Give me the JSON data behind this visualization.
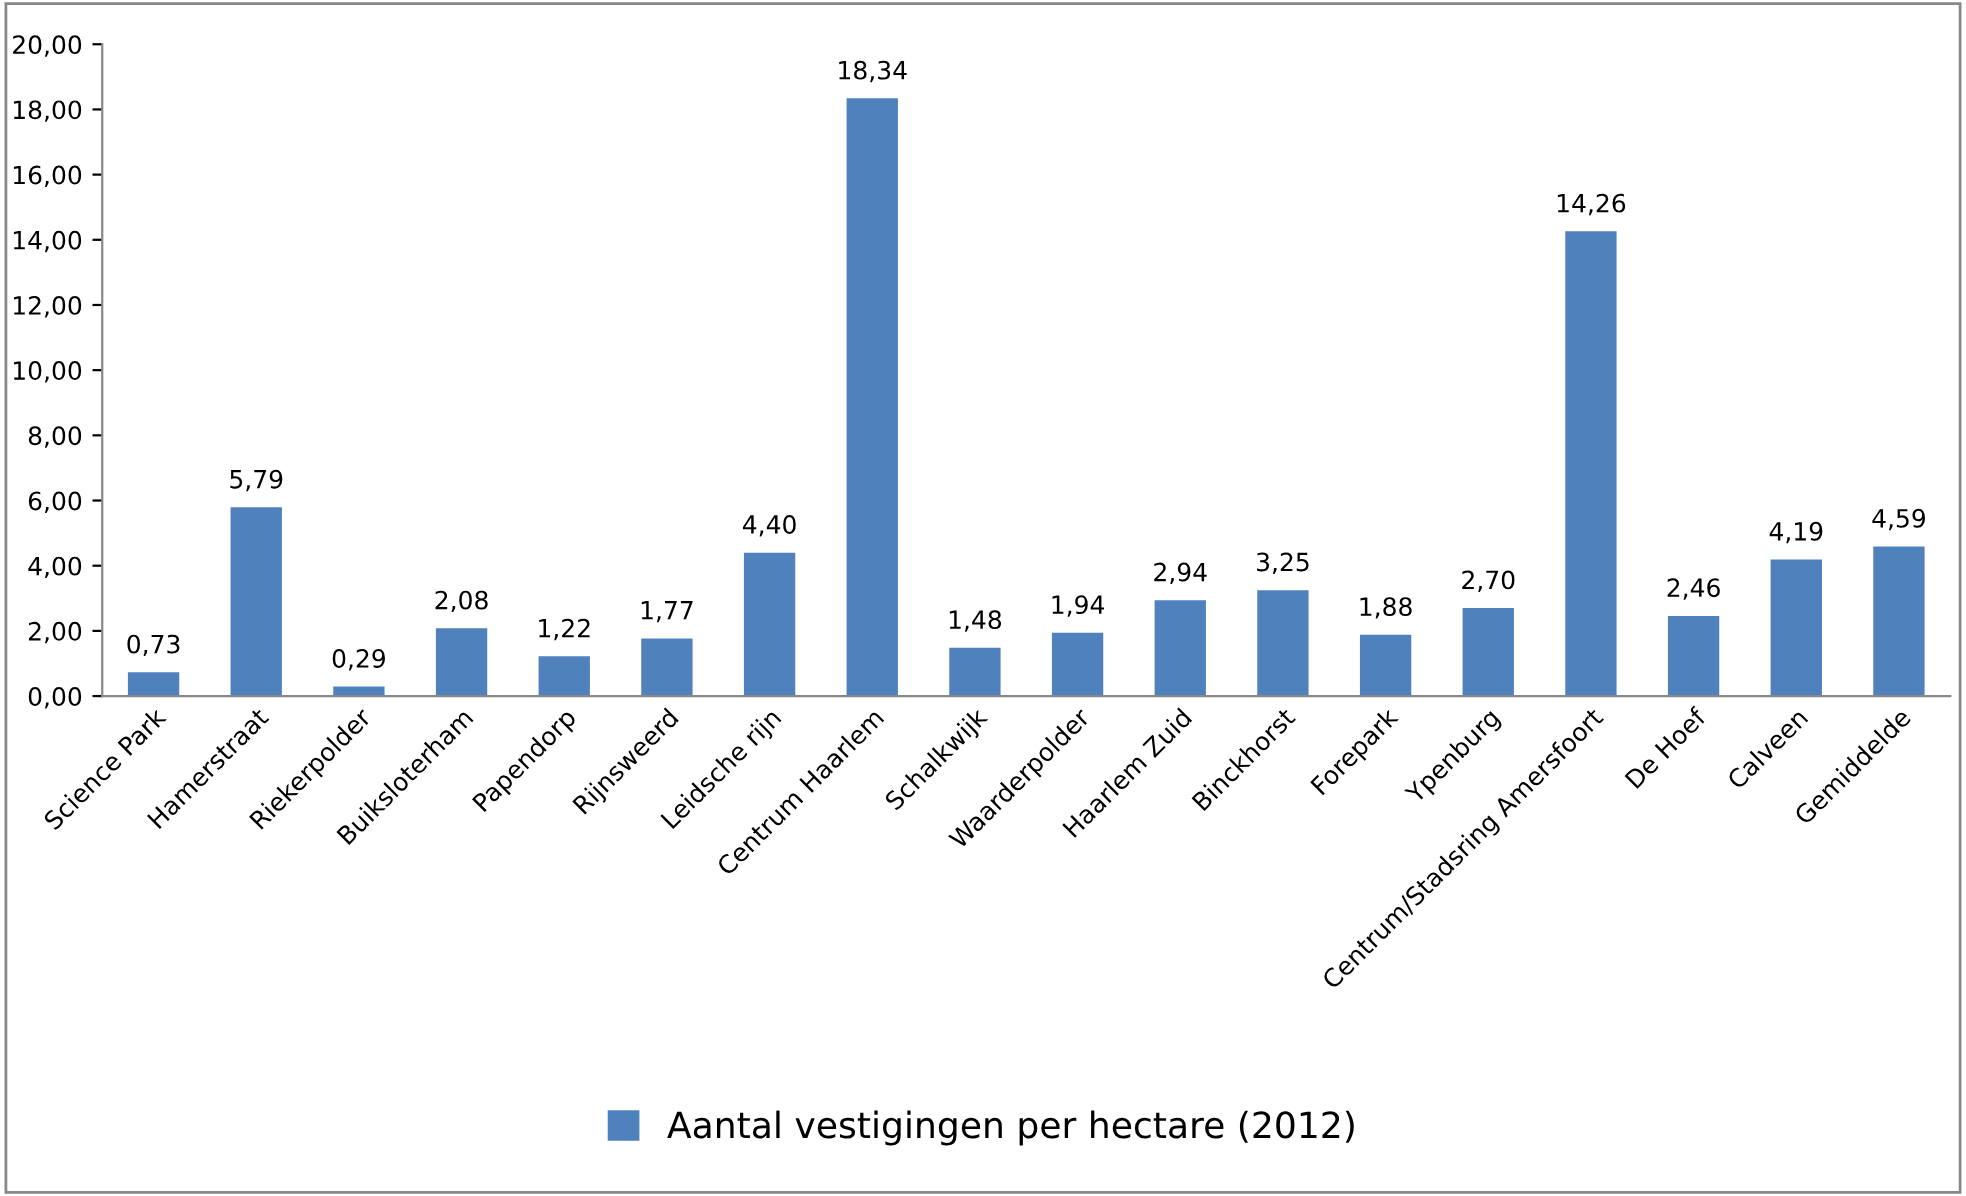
{
  "chart_data": {
    "type": "bar",
    "categories": [
      "Science Park",
      "Hamerstraat",
      "Riekerpolder",
      "Buiksloterham",
      "Papendorp",
      "Rijnsweerd",
      "Leidsche rijn",
      "Centrum Haarlem",
      "Schalkwijk",
      "Waarderpolder",
      "Haarlem Zuid",
      "Binckhorst",
      "Forepark",
      "Ypenburg",
      "Centrum/Stadsring Amersfoort",
      "De Hoef",
      "Calveen",
      "Gemiddelde"
    ],
    "series": [
      {
        "name": "Aantal vestigingen per hectare (2012)",
        "color": "#4f81bd",
        "values": [
          0.73,
          5.79,
          0.29,
          2.08,
          1.22,
          1.77,
          4.4,
          18.34,
          1.48,
          1.94,
          2.94,
          3.25,
          1.88,
          2.7,
          14.26,
          2.46,
          4.19,
          4.59
        ],
        "value_labels": [
          "0,73",
          "5,79",
          "0,29",
          "2,08",
          "1,22",
          "1,77",
          "4,40",
          "18,34",
          "1,48",
          "1,94",
          "2,94",
          "3,25",
          "1,88",
          "2,70",
          "14,26",
          "2,46",
          "4,19",
          "4,59"
        ]
      }
    ],
    "ylim": [
      0,
      20
    ],
    "yticks": [
      {
        "value": 0,
        "label": "0,00"
      },
      {
        "value": 2,
        "label": "2,00"
      },
      {
        "value": 4,
        "label": "4,00"
      },
      {
        "value": 6,
        "label": "6,00"
      },
      {
        "value": 8,
        "label": "8,00"
      },
      {
        "value": 10,
        "label": "10,00"
      },
      {
        "value": 12,
        "label": "12,00"
      },
      {
        "value": 14,
        "label": "14,00"
      },
      {
        "value": 16,
        "label": "16,00"
      },
      {
        "value": 18,
        "label": "18,00"
      },
      {
        "value": 20,
        "label": "20,00"
      }
    ],
    "grid": false,
    "legend": "bottom"
  }
}
